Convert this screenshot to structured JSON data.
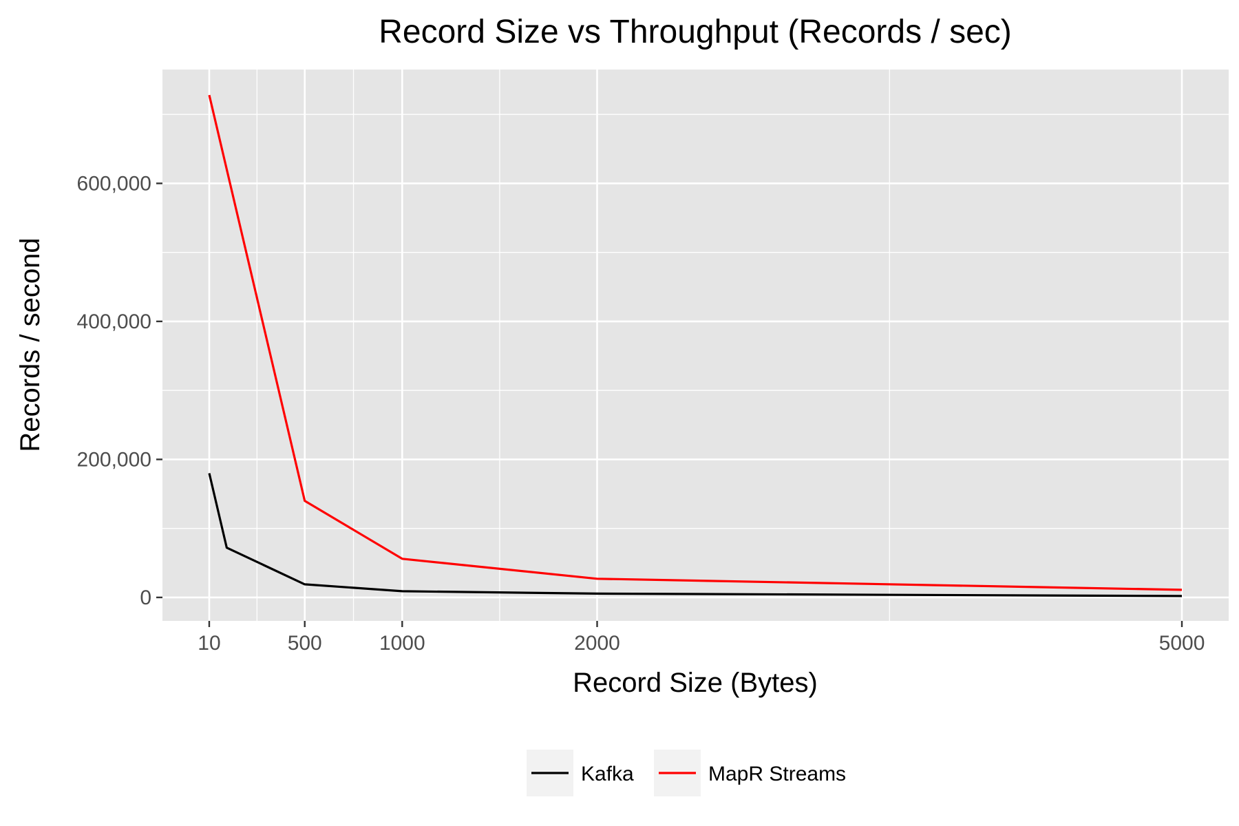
{
  "chart_data": {
    "type": "line",
    "title": "Record Size vs Throughput (Records / sec)",
    "xlabel": "Record Size (Bytes)",
    "ylabel": "Records / second",
    "xlim": [
      -230,
      5240
    ],
    "ylim": [
      -34000,
      765000
    ],
    "x_ticks": [
      10,
      500,
      1000,
      2000,
      5000
    ],
    "x_tick_labels": [
      "10",
      "500",
      "1000",
      "2000",
      "5000"
    ],
    "y_ticks": [
      0,
      200000,
      400000,
      600000
    ],
    "y_tick_labels": [
      "0",
      "200,000",
      "400,000",
      "600,000"
    ],
    "background": "#e5e5e5",
    "grid": true,
    "legend_position": "bottom",
    "series": [
      {
        "name": "Kafka",
        "color": "#000000",
        "x": [
          10,
          100,
          500,
          1000,
          2000,
          5000
        ],
        "y": [
          180000,
          72000,
          19000,
          9000,
          5500,
          2000
        ]
      },
      {
        "name": "MapR Streams",
        "color": "#ff0000",
        "x": [
          10,
          500,
          1000,
          2000,
          5000
        ],
        "y": [
          728000,
          140000,
          56000,
          27000,
          11000
        ]
      }
    ]
  }
}
